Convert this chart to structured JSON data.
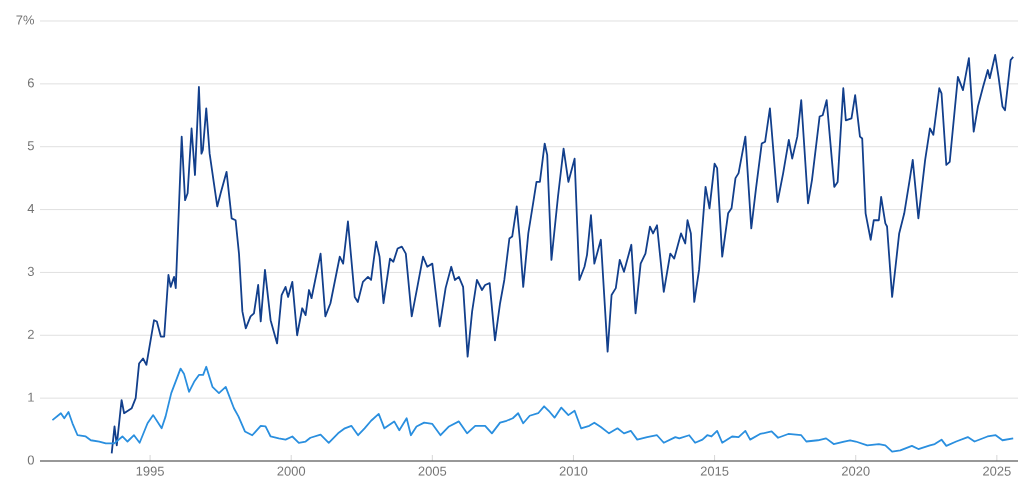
{
  "chart_data": {
    "type": "line",
    "xlim": [
      1991.1,
      2025.75
    ],
    "ylim": [
      0,
      7
    ],
    "xticks": [
      1995,
      2000,
      2005,
      2010,
      2015,
      2020,
      2025
    ],
    "yticks": [
      0,
      1,
      2,
      3,
      4,
      5,
      6,
      {
        "value": 7,
        "label": "7%"
      }
    ],
    "grid": "y",
    "series": [
      {
        "color": "#123f8c",
        "x": [
          1993.64,
          1993.74,
          1993.82,
          1993.99,
          1994.08,
          1994.35,
          1994.49,
          1994.61,
          1994.75,
          1994.87,
          1995.14,
          1995.24,
          1995.38,
          1995.5,
          1995.65,
          1995.73,
          1995.85,
          1995.91,
          1996.12,
          1996.24,
          1996.33,
          1996.47,
          1996.59,
          1996.73,
          1996.82,
          1996.87,
          1996.99,
          1997.11,
          1997.38,
          1997.5,
          1997.71,
          1997.89,
          1998.03,
          1998.15,
          1998.27,
          1998.39,
          1998.56,
          1998.68,
          1998.83,
          1998.92,
          1999.07,
          1999.27,
          1999.5,
          1999.66,
          1999.8,
          1999.89,
          2000.04,
          2000.21,
          2000.39,
          2000.51,
          2000.63,
          2000.72,
          2001.04,
          2001.21,
          2001.39,
          2001.72,
          2001.84,
          2002.01,
          2002.25,
          2002.36,
          2002.54,
          2002.72,
          2002.83,
          2003.01,
          2003.13,
          2003.27,
          2003.5,
          2003.62,
          2003.77,
          2003.92,
          2004.06,
          2004.27,
          2004.47,
          2004.67,
          2004.82,
          2005.0,
          2005.26,
          2005.47,
          2005.67,
          2005.8,
          2005.94,
          2006.09,
          2006.25,
          2006.41,
          2006.58,
          2006.76,
          2006.87,
          2007.03,
          2007.22,
          2007.4,
          2007.55,
          2007.73,
          2007.83,
          2007.99,
          2008.1,
          2008.22,
          2008.4,
          2008.57,
          2008.69,
          2008.81,
          2008.98,
          2009.07,
          2009.22,
          2009.45,
          2009.65,
          2009.82,
          2010.04,
          2010.21,
          2010.39,
          2010.48,
          2010.62,
          2010.74,
          2010.97,
          2011.21,
          2011.35,
          2011.5,
          2011.64,
          2011.79,
          2012.05,
          2012.2,
          2012.38,
          2012.55,
          2012.71,
          2012.82,
          2012.96,
          2013.2,
          2013.43,
          2013.57,
          2013.81,
          2013.96,
          2014.04,
          2014.16,
          2014.28,
          2014.45,
          2014.68,
          2014.82,
          2015.0,
          2015.09,
          2015.27,
          2015.48,
          2015.6,
          2015.74,
          2015.85,
          2016.09,
          2016.3,
          2016.46,
          2016.67,
          2016.79,
          2016.96,
          2017.23,
          2017.43,
          2017.63,
          2017.75,
          2017.93,
          2018.07,
          2018.31,
          2018.45,
          2018.72,
          2018.83,
          2018.97,
          2019.24,
          2019.36,
          2019.56,
          2019.65,
          2019.85,
          2019.98,
          2020.15,
          2020.23,
          2020.35,
          2020.53,
          2020.64,
          2020.82,
          2020.9,
          2021.05,
          2021.11,
          2021.29,
          2021.41,
          2021.54,
          2021.72,
          2021.91,
          2022.02,
          2022.22,
          2022.46,
          2022.63,
          2022.75,
          2022.96,
          2023.04,
          2023.21,
          2023.33,
          2023.62,
          2023.8,
          2024.01,
          2024.18,
          2024.33,
          2024.51,
          2024.68,
          2024.75,
          2024.94,
          2025.06,
          2025.2,
          2025.29,
          2025.49,
          2025.58
        ],
        "values": [
          0.12,
          0.55,
          0.25,
          0.97,
          0.76,
          0.84,
          1.0,
          1.55,
          1.63,
          1.53,
          2.24,
          2.22,
          1.98,
          1.98,
          2.96,
          2.77,
          2.93,
          2.75,
          5.16,
          4.15,
          4.26,
          5.29,
          4.55,
          5.95,
          4.89,
          4.95,
          5.61,
          4.89,
          4.05,
          4.26,
          4.6,
          3.86,
          3.83,
          3.3,
          2.38,
          2.11,
          2.3,
          2.35,
          2.8,
          2.22,
          3.04,
          2.24,
          1.87,
          2.64,
          2.77,
          2.61,
          2.85,
          2.0,
          2.43,
          2.32,
          2.72,
          2.59,
          3.3,
          2.3,
          2.51,
          3.25,
          3.14,
          3.81,
          2.61,
          2.53,
          2.85,
          2.93,
          2.88,
          3.49,
          3.25,
          2.51,
          3.22,
          3.17,
          3.38,
          3.41,
          3.3,
          2.3,
          2.77,
          3.25,
          3.09,
          3.14,
          2.14,
          2.75,
          3.09,
          2.88,
          2.93,
          2.77,
          1.66,
          2.38,
          2.88,
          2.72,
          2.8,
          2.83,
          1.92,
          2.51,
          2.88,
          3.54,
          3.57,
          4.05,
          3.52,
          2.77,
          3.62,
          4.1,
          4.44,
          4.44,
          5.05,
          4.87,
          3.2,
          4.2,
          4.97,
          4.44,
          4.81,
          2.88,
          3.09,
          3.28,
          3.91,
          3.14,
          3.52,
          1.74,
          2.64,
          2.75,
          3.2,
          3.01,
          3.44,
          2.35,
          3.14,
          3.3,
          3.73,
          3.62,
          3.75,
          2.69,
          3.3,
          3.22,
          3.62,
          3.46,
          3.83,
          3.62,
          2.53,
          3.04,
          4.36,
          4.02,
          4.73,
          4.66,
          3.25,
          3.94,
          4.02,
          4.5,
          4.58,
          5.16,
          3.7,
          4.31,
          5.05,
          5.08,
          5.61,
          4.12,
          4.58,
          5.11,
          4.81,
          5.16,
          5.74,
          4.1,
          4.47,
          5.48,
          5.5,
          5.74,
          4.36,
          4.44,
          5.93,
          5.42,
          5.45,
          5.82,
          5.16,
          5.13,
          3.94,
          3.52,
          3.83,
          3.83,
          4.2,
          3.78,
          3.73,
          2.61,
          3.09,
          3.62,
          3.94,
          4.47,
          4.79,
          3.86,
          4.79,
          5.29,
          5.19,
          5.93,
          5.85,
          4.71,
          4.76,
          6.11,
          5.9,
          6.41,
          5.24,
          5.64,
          5.95,
          6.22,
          6.09,
          6.46,
          6.11,
          5.64,
          5.58,
          6.38,
          6.43
        ]
      },
      {
        "color": "#2a8fdf",
        "x": [
          1991.54,
          1991.84,
          1991.96,
          1992.11,
          1992.25,
          1992.43,
          1992.72,
          1992.9,
          1993.2,
          1993.43,
          1993.73,
          1994.02,
          1994.2,
          1994.43,
          1994.63,
          1994.91,
          1995.11,
          1995.41,
          1995.55,
          1995.75,
          1996.08,
          1996.2,
          1996.38,
          1996.56,
          1996.73,
          1996.88,
          1996.99,
          1997.21,
          1997.44,
          1997.68,
          1997.97,
          1998.13,
          1998.36,
          1998.62,
          1998.92,
          1999.09,
          1999.27,
          1999.56,
          1999.8,
          2000.04,
          2000.27,
          2000.51,
          2000.68,
          2001.04,
          2001.33,
          2001.66,
          2001.9,
          2002.13,
          2002.37,
          2002.6,
          2002.83,
          2003.1,
          2003.3,
          2003.65,
          2003.83,
          2004.09,
          2004.24,
          2004.44,
          2004.71,
          2005.0,
          2005.29,
          2005.59,
          2005.94,
          2006.23,
          2006.52,
          2006.87,
          2007.11,
          2007.4,
          2007.63,
          2007.85,
          2008.04,
          2008.22,
          2008.45,
          2008.75,
          2008.96,
          2009.16,
          2009.33,
          2009.57,
          2009.82,
          2010.04,
          2010.27,
          2010.56,
          2010.74,
          2010.97,
          2011.26,
          2011.56,
          2011.79,
          2012.03,
          2012.26,
          2012.61,
          2012.96,
          2013.2,
          2013.61,
          2013.75,
          2014.1,
          2014.31,
          2014.57,
          2014.74,
          2014.89,
          2015.09,
          2015.27,
          2015.62,
          2015.85,
          2016.09,
          2016.26,
          2016.61,
          2017.02,
          2017.25,
          2017.61,
          2018.07,
          2018.25,
          2018.66,
          2018.95,
          2019.22,
          2019.59,
          2019.8,
          2020.0,
          2020.41,
          2020.82,
          2021.05,
          2021.29,
          2021.58,
          2021.99,
          2022.22,
          2022.63,
          2022.8,
          2023.04,
          2023.21,
          2023.56,
          2023.97,
          2024.21,
          2024.67,
          2024.96,
          2025.2,
          2025.58
        ],
        "values": [
          0.65,
          0.76,
          0.68,
          0.78,
          0.6,
          0.41,
          0.39,
          0.33,
          0.31,
          0.28,
          0.28,
          0.39,
          0.31,
          0.41,
          0.29,
          0.6,
          0.73,
          0.52,
          0.71,
          1.08,
          1.47,
          1.39,
          1.1,
          1.26,
          1.37,
          1.37,
          1.5,
          1.18,
          1.08,
          1.18,
          0.84,
          0.71,
          0.47,
          0.41,
          0.56,
          0.55,
          0.39,
          0.36,
          0.34,
          0.39,
          0.29,
          0.31,
          0.37,
          0.42,
          0.29,
          0.44,
          0.52,
          0.56,
          0.41,
          0.52,
          0.64,
          0.75,
          0.52,
          0.63,
          0.49,
          0.68,
          0.41,
          0.55,
          0.61,
          0.59,
          0.41,
          0.55,
          0.63,
          0.44,
          0.56,
          0.56,
          0.44,
          0.61,
          0.64,
          0.68,
          0.76,
          0.6,
          0.72,
          0.76,
          0.87,
          0.78,
          0.69,
          0.85,
          0.73,
          0.8,
          0.52,
          0.56,
          0.61,
          0.54,
          0.44,
          0.52,
          0.44,
          0.48,
          0.34,
          0.38,
          0.41,
          0.29,
          0.38,
          0.36,
          0.41,
          0.29,
          0.34,
          0.41,
          0.39,
          0.48,
          0.29,
          0.39,
          0.38,
          0.48,
          0.34,
          0.43,
          0.47,
          0.37,
          0.43,
          0.41,
          0.31,
          0.33,
          0.36,
          0.27,
          0.31,
          0.33,
          0.31,
          0.25,
          0.27,
          0.25,
          0.15,
          0.17,
          0.24,
          0.19,
          0.25,
          0.27,
          0.34,
          0.24,
          0.31,
          0.38,
          0.31,
          0.39,
          0.41,
          0.33,
          0.36
        ]
      }
    ]
  }
}
